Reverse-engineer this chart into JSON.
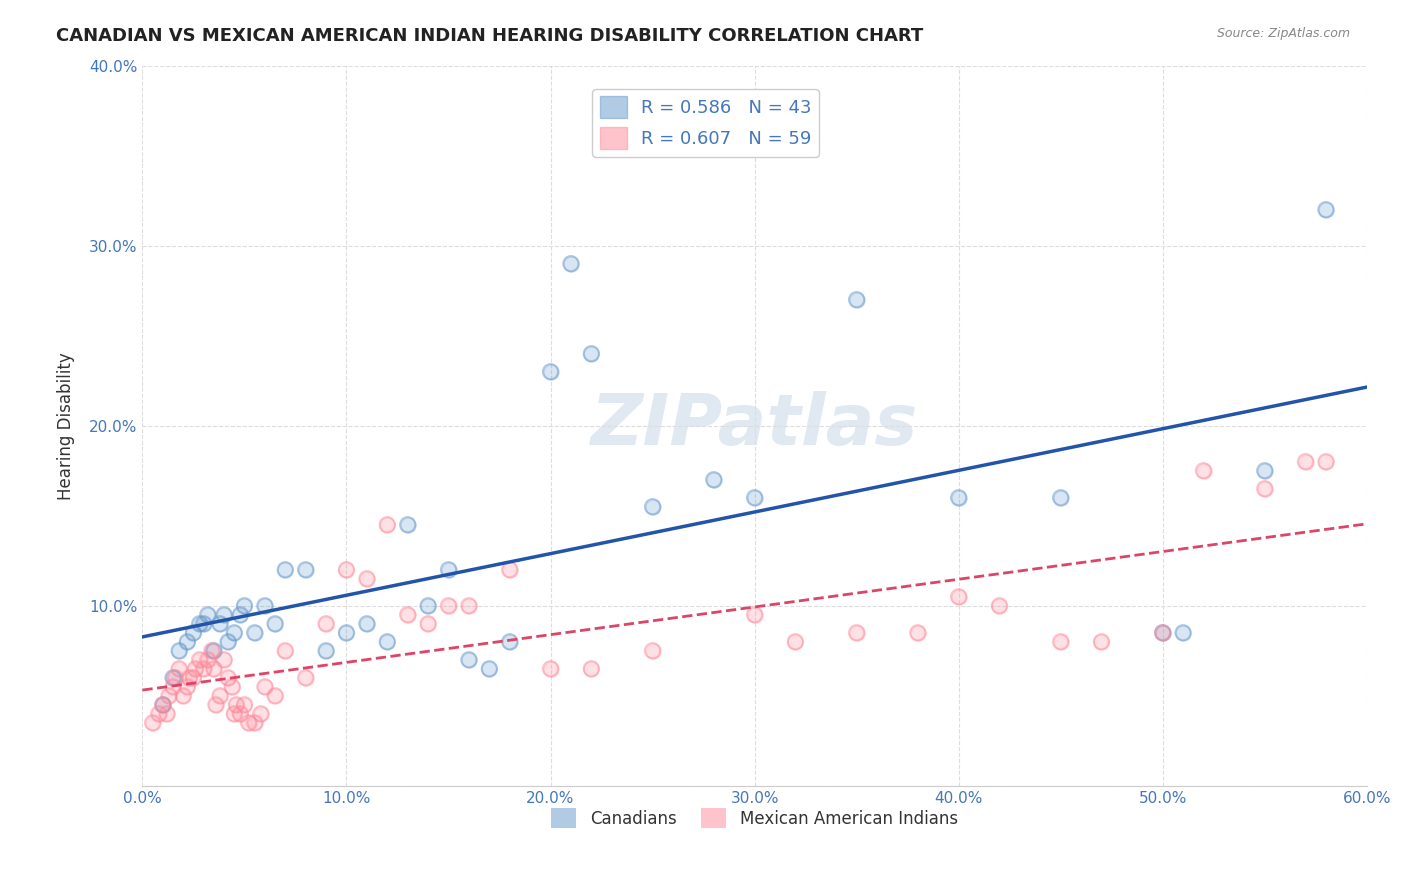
{
  "title": "CANADIAN VS MEXICAN AMERICAN INDIAN HEARING DISABILITY CORRELATION CHART",
  "source": "Source: ZipAtlas.com",
  "xlabel_label": "",
  "ylabel_label": "Hearing Disability",
  "xlim": [
    0,
    0.6
  ],
  "ylim": [
    0,
    0.4
  ],
  "xticks": [
    0.0,
    0.1,
    0.2,
    0.3,
    0.4,
    0.5,
    0.6
  ],
  "yticks": [
    0.0,
    0.1,
    0.2,
    0.3,
    0.4
  ],
  "xtick_labels": [
    "0.0%",
    "10.0%",
    "20.0%",
    "30.0%",
    "40.0%",
    "50.0%",
    "60.0%"
  ],
  "ytick_labels": [
    "",
    "10.0%",
    "20.0%",
    "30.0%",
    "40.0%"
  ],
  "legend_r_blue": "R = 0.586",
  "legend_n_blue": "N = 43",
  "legend_r_pink": "R = 0.607",
  "legend_n_pink": "N = 59",
  "legend_label_blue": "Canadians",
  "legend_label_pink": "Mexican American Indians",
  "blue_color": "#6699cc",
  "pink_color": "#ff8899",
  "blue_line_color": "#2255aa",
  "pink_line_color": "#dd4466",
  "watermark": "ZIPatlas",
  "background_color": "#ffffff",
  "grid_color": "#dddddd",
  "blue_scatter": [
    [
      0.01,
      0.045
    ],
    [
      0.015,
      0.06
    ],
    [
      0.018,
      0.075
    ],
    [
      0.022,
      0.08
    ],
    [
      0.025,
      0.085
    ],
    [
      0.028,
      0.09
    ],
    [
      0.03,
      0.09
    ],
    [
      0.032,
      0.095
    ],
    [
      0.035,
      0.075
    ],
    [
      0.038,
      0.09
    ],
    [
      0.04,
      0.095
    ],
    [
      0.042,
      0.08
    ],
    [
      0.045,
      0.085
    ],
    [
      0.048,
      0.095
    ],
    [
      0.05,
      0.1
    ],
    [
      0.055,
      0.085
    ],
    [
      0.06,
      0.1
    ],
    [
      0.065,
      0.09
    ],
    [
      0.07,
      0.12
    ],
    [
      0.08,
      0.12
    ],
    [
      0.09,
      0.075
    ],
    [
      0.1,
      0.085
    ],
    [
      0.11,
      0.09
    ],
    [
      0.12,
      0.08
    ],
    [
      0.13,
      0.145
    ],
    [
      0.14,
      0.1
    ],
    [
      0.15,
      0.12
    ],
    [
      0.16,
      0.07
    ],
    [
      0.17,
      0.065
    ],
    [
      0.18,
      0.08
    ],
    [
      0.2,
      0.23
    ],
    [
      0.21,
      0.29
    ],
    [
      0.22,
      0.24
    ],
    [
      0.25,
      0.155
    ],
    [
      0.28,
      0.17
    ],
    [
      0.3,
      0.16
    ],
    [
      0.35,
      0.27
    ],
    [
      0.4,
      0.16
    ],
    [
      0.45,
      0.16
    ],
    [
      0.5,
      0.085
    ],
    [
      0.51,
      0.085
    ],
    [
      0.55,
      0.175
    ],
    [
      0.58,
      0.32
    ]
  ],
  "pink_scatter": [
    [
      0.005,
      0.035
    ],
    [
      0.008,
      0.04
    ],
    [
      0.01,
      0.045
    ],
    [
      0.012,
      0.04
    ],
    [
      0.013,
      0.05
    ],
    [
      0.015,
      0.055
    ],
    [
      0.016,
      0.06
    ],
    [
      0.018,
      0.065
    ],
    [
      0.02,
      0.05
    ],
    [
      0.022,
      0.055
    ],
    [
      0.023,
      0.06
    ],
    [
      0.025,
      0.06
    ],
    [
      0.026,
      0.065
    ],
    [
      0.028,
      0.07
    ],
    [
      0.03,
      0.065
    ],
    [
      0.032,
      0.07
    ],
    [
      0.034,
      0.075
    ],
    [
      0.035,
      0.065
    ],
    [
      0.036,
      0.045
    ],
    [
      0.038,
      0.05
    ],
    [
      0.04,
      0.07
    ],
    [
      0.042,
      0.06
    ],
    [
      0.044,
      0.055
    ],
    [
      0.045,
      0.04
    ],
    [
      0.046,
      0.045
    ],
    [
      0.048,
      0.04
    ],
    [
      0.05,
      0.045
    ],
    [
      0.052,
      0.035
    ],
    [
      0.055,
      0.035
    ],
    [
      0.058,
      0.04
    ],
    [
      0.06,
      0.055
    ],
    [
      0.065,
      0.05
    ],
    [
      0.07,
      0.075
    ],
    [
      0.08,
      0.06
    ],
    [
      0.09,
      0.09
    ],
    [
      0.1,
      0.12
    ],
    [
      0.11,
      0.115
    ],
    [
      0.12,
      0.145
    ],
    [
      0.13,
      0.095
    ],
    [
      0.14,
      0.09
    ],
    [
      0.15,
      0.1
    ],
    [
      0.16,
      0.1
    ],
    [
      0.18,
      0.12
    ],
    [
      0.2,
      0.065
    ],
    [
      0.22,
      0.065
    ],
    [
      0.25,
      0.075
    ],
    [
      0.3,
      0.095
    ],
    [
      0.32,
      0.08
    ],
    [
      0.35,
      0.085
    ],
    [
      0.38,
      0.085
    ],
    [
      0.4,
      0.105
    ],
    [
      0.42,
      0.1
    ],
    [
      0.45,
      0.08
    ],
    [
      0.47,
      0.08
    ],
    [
      0.5,
      0.085
    ],
    [
      0.52,
      0.175
    ],
    [
      0.55,
      0.165
    ],
    [
      0.57,
      0.18
    ],
    [
      0.58,
      0.18
    ]
  ]
}
